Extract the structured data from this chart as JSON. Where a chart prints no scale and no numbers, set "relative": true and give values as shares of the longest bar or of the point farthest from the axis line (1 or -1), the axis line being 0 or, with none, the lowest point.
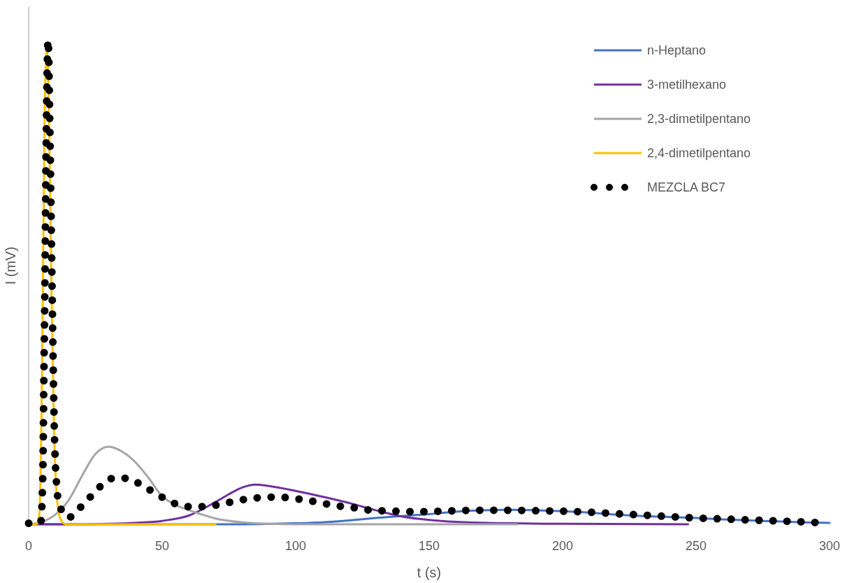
{
  "chart_data": {
    "type": "line",
    "relative": true,
    "xlabel": "t (s)",
    "ylabel": "I (mV)",
    "xlim": [
      0,
      300
    ],
    "xticks": [
      0,
      50,
      100,
      150,
      200,
      250,
      300
    ],
    "tick_labels": "x",
    "legend": "top right",
    "series": [
      {
        "name": "n-Heptano",
        "color": "#4472c4",
        "x": [
          0,
          80,
          100,
          110,
          120,
          130,
          140,
          150,
          160,
          170,
          180,
          190,
          200,
          210,
          220,
          230,
          240,
          250,
          260,
          270,
          280,
          290,
          300
        ],
        "values": [
          0,
          0,
          0.002,
          0.004,
          0.008,
          0.013,
          0.017,
          0.021,
          0.026,
          0.029,
          0.03,
          0.029,
          0.027,
          0.024,
          0.02,
          0.017,
          0.015,
          0.013,
          0.01,
          0.008,
          0.006,
          0.004,
          0.003
        ]
      },
      {
        "name": "3-metilhexano",
        "color": "#7030a0",
        "x": [
          0,
          20,
          30,
          40,
          50,
          60,
          70,
          75,
          80,
          85,
          90,
          100,
          110,
          120,
          130,
          140,
          150,
          160,
          180,
          200,
          247
        ],
        "values": [
          0,
          0,
          0.001,
          0.003,
          0.007,
          0.018,
          0.046,
          0.062,
          0.076,
          0.082,
          0.079,
          0.069,
          0.057,
          0.044,
          0.029,
          0.016,
          0.009,
          0.005,
          0.002,
          0.001,
          0
        ]
      },
      {
        "name": "2,3-dimetilpentano",
        "color": "#a5a5a5",
        "x": [
          0,
          5,
          10,
          15,
          20,
          25,
          30,
          35,
          40,
          45,
          50,
          55,
          60,
          65,
          70,
          80,
          90,
          100,
          183
        ],
        "values": [
          0,
          0.005,
          0.02,
          0.05,
          0.1,
          0.145,
          0.16,
          0.15,
          0.128,
          0.095,
          0.058,
          0.04,
          0.029,
          0.02,
          0.012,
          0.004,
          0.001,
          0,
          0
        ]
      },
      {
        "name": "2,4-dimetilpentano",
        "color": "#ffc000",
        "x": [
          0,
          3,
          4,
          5,
          6,
          6.8,
          7.6,
          8.5,
          9.5,
          10.5,
          12,
          14,
          70
        ],
        "values": [
          0,
          0,
          0.02,
          0.3,
          0.85,
          0.98,
          0.85,
          0.5,
          0.2,
          0.06,
          0.01,
          0,
          0
        ]
      },
      {
        "name": "MEZCLA BC7",
        "color": "#000000",
        "line_style": "dotted",
        "x": [
          0,
          4.5,
          5.3,
          5.7,
          6.1,
          6.5,
          7.3,
          8,
          8.5,
          9,
          9.6,
          10.5,
          11.5,
          14.9,
          19.4,
          23,
          27,
          31.7,
          37,
          42,
          46.6,
          51.3,
          56.3,
          61.8,
          67,
          72.7,
          78,
          83.5,
          88.7,
          94,
          99.7,
          105,
          110.5,
          115.7,
          121,
          126.6,
          132,
          137,
          142.7,
          148,
          154,
          160,
          170,
          180,
          190,
          200,
          210,
          220,
          230,
          240,
          250,
          260,
          270,
          280,
          290,
          297
        ],
        "values": [
          0.002,
          0.004,
          0.1,
          0.3,
          0.5,
          0.75,
          1,
          0.8,
          0.6,
          0.4,
          0.2,
          0.08,
          0.04,
          0.014,
          0.035,
          0.056,
          0.079,
          0.095,
          0.095,
          0.082,
          0.067,
          0.052,
          0.04,
          0.036,
          0.0375,
          0.042,
          0.049,
          0.053,
          0.056,
          0.056,
          0.053,
          0.049,
          0.043,
          0.038,
          0.035,
          0.03,
          0.028,
          0.027,
          0.026,
          0.026,
          0.027,
          0.028,
          0.029,
          0.029,
          0.028,
          0.027,
          0.025,
          0.022,
          0.019,
          0.016,
          0.013,
          0.011,
          0.009,
          0.007,
          0.005,
          0.003
        ]
      }
    ]
  }
}
